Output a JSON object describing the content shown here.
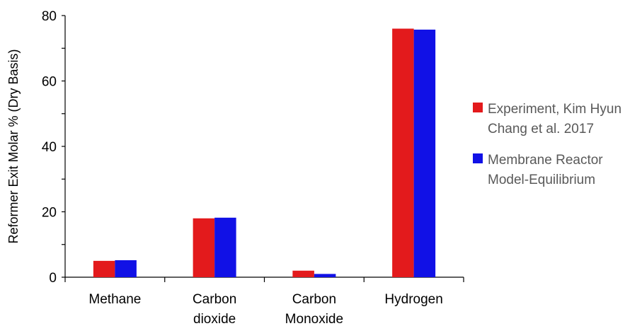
{
  "chart_data": {
    "type": "bar",
    "title": "",
    "xlabel": "",
    "ylabel": "Reformer Exit Molar % (Dry Basis)",
    "ylim": [
      0,
      80
    ],
    "yticks": [
      0,
      20,
      40,
      60,
      80
    ],
    "grid": false,
    "legend_position": "right",
    "categories": [
      [
        "Methane"
      ],
      [
        "Carbon",
        "dioxide"
      ],
      [
        "Carbon",
        "Monoxide"
      ],
      [
        "Hydrogen"
      ]
    ],
    "series": [
      {
        "name": [
          "Experiment, Kim Hyun",
          "Chang et al. 2017"
        ],
        "color": "#e31a1c",
        "values": [
          5.0,
          18.0,
          2.0,
          76.0
        ]
      },
      {
        "name": [
          "Membrane Reactor",
          "Model-Equilibrium"
        ],
        "color": "#1111e6",
        "values": [
          5.2,
          18.2,
          1.0,
          75.7
        ]
      }
    ]
  }
}
